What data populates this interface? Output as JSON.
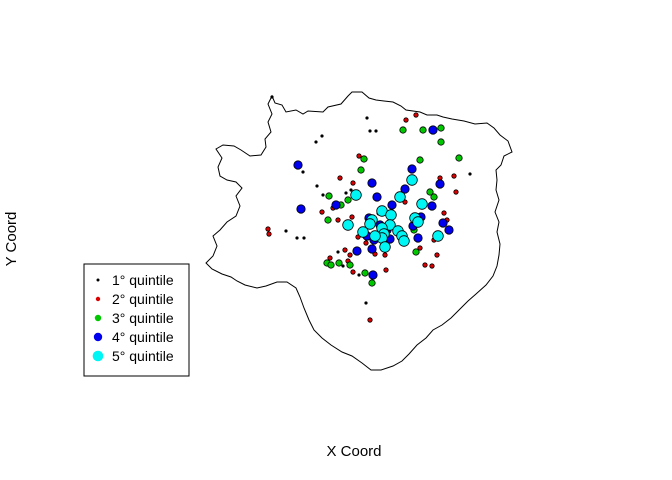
{
  "chart_data": {
    "type": "scatter",
    "xlabel": "X Coord",
    "ylabel": "Y Coord",
    "grid": false,
    "legend_placement": "bottom-left",
    "boundary": [
      [
        272,
        96
      ],
      [
        275,
        103
      ],
      [
        282,
        105
      ],
      [
        286,
        112
      ],
      [
        296,
        110
      ],
      [
        303,
        114
      ],
      [
        308,
        111
      ],
      [
        323,
        112
      ],
      [
        328,
        107
      ],
      [
        341,
        104
      ],
      [
        348,
        96
      ],
      [
        352,
        92
      ],
      [
        362,
        92
      ],
      [
        369,
        98
      ],
      [
        376,
        100
      ],
      [
        384,
        101
      ],
      [
        393,
        102
      ],
      [
        401,
        106
      ],
      [
        406,
        110
      ],
      [
        420,
        112
      ],
      [
        427,
        115
      ],
      [
        437,
        115
      ],
      [
        443,
        117
      ],
      [
        452,
        119
      ],
      [
        464,
        121
      ],
      [
        475,
        124
      ],
      [
        487,
        123
      ],
      [
        494,
        128
      ],
      [
        500,
        135
      ],
      [
        508,
        141
      ],
      [
        512,
        152
      ],
      [
        504,
        156
      ],
      [
        501,
        165
      ],
      [
        496,
        170
      ],
      [
        497,
        180
      ],
      [
        496,
        190
      ],
      [
        499,
        200
      ],
      [
        495,
        212
      ],
      [
        499,
        222
      ],
      [
        497,
        232
      ],
      [
        500,
        244
      ],
      [
        499,
        255
      ],
      [
        497,
        266
      ],
      [
        493,
        276
      ],
      [
        486,
        285
      ],
      [
        476,
        294
      ],
      [
        468,
        301
      ],
      [
        459,
        310
      ],
      [
        451,
        318
      ],
      [
        442,
        325
      ],
      [
        433,
        330
      ],
      [
        426,
        338
      ],
      [
        417,
        345
      ],
      [
        409,
        354
      ],
      [
        402,
        361
      ],
      [
        393,
        366
      ],
      [
        381,
        370
      ],
      [
        371,
        370
      ],
      [
        362,
        363
      ],
      [
        352,
        356
      ],
      [
        342,
        352
      ],
      [
        331,
        345
      ],
      [
        322,
        338
      ],
      [
        314,
        330
      ],
      [
        309,
        320
      ],
      [
        304,
        308
      ],
      [
        300,
        297
      ],
      [
        296,
        288
      ],
      [
        287,
        282
      ],
      [
        277,
        282
      ],
      [
        266,
        286
      ],
      [
        257,
        288
      ],
      [
        245,
        285
      ],
      [
        237,
        281
      ],
      [
        231,
        277
      ],
      [
        222,
        274
      ],
      [
        212,
        269
      ],
      [
        206,
        263
      ],
      [
        213,
        256
      ],
      [
        217,
        246
      ],
      [
        213,
        236
      ],
      [
        220,
        230
      ],
      [
        227,
        222
      ],
      [
        236,
        216
      ],
      [
        240,
        206
      ],
      [
        236,
        196
      ],
      [
        242,
        188
      ],
      [
        236,
        182
      ],
      [
        227,
        180
      ],
      [
        220,
        176
      ],
      [
        218,
        167
      ],
      [
        222,
        158
      ],
      [
        216,
        149
      ],
      [
        223,
        145
      ],
      [
        234,
        146
      ],
      [
        241,
        150
      ],
      [
        250,
        156
      ],
      [
        261,
        155
      ],
      [
        266,
        147
      ],
      [
        265,
        139
      ],
      [
        271,
        132
      ],
      [
        268,
        122
      ],
      [
        272,
        114
      ],
      [
        268,
        104
      ],
      [
        272,
        96
      ]
    ],
    "series": [
      {
        "name": "1° quintile",
        "color": "#000000",
        "size": 1.5,
        "points": [
          [
            272,
            97
          ],
          [
            367,
            118
          ],
          [
            322,
            136
          ],
          [
            370,
            131
          ],
          [
            376,
            131
          ],
          [
            316,
            142
          ],
          [
            303,
            172
          ],
          [
            317,
            186
          ],
          [
            323,
            195
          ],
          [
            351,
            190
          ],
          [
            346,
            193
          ],
          [
            286,
            231
          ],
          [
            297,
            238
          ],
          [
            304,
            238
          ],
          [
            470,
            174
          ],
          [
            343,
            266
          ],
          [
            338,
            252
          ],
          [
            359,
            275
          ],
          [
            366,
            303
          ]
        ]
      },
      {
        "name": "2° quintile",
        "color": "#DD0000",
        "size": 2.2,
        "points": [
          [
            406,
            120
          ],
          [
            416,
            115
          ],
          [
            359,
            156
          ],
          [
            340,
            178
          ],
          [
            353,
            183
          ],
          [
            333,
            208
          ],
          [
            338,
            220
          ],
          [
            352,
            217
          ],
          [
            358,
            237
          ],
          [
            345,
            250
          ],
          [
            366,
            243
          ],
          [
            268,
            229
          ],
          [
            269,
            234
          ],
          [
            322,
            212
          ],
          [
            350,
            255
          ],
          [
            348,
            261
          ],
          [
            353,
            272
          ],
          [
            330,
            258
          ],
          [
            375,
            254
          ],
          [
            385,
            255
          ],
          [
            386,
            270
          ],
          [
            420,
            248
          ],
          [
            425,
            265
          ],
          [
            432,
            266
          ],
          [
            437,
            255
          ],
          [
            434,
            240
          ],
          [
            447,
            220
          ],
          [
            444,
            213
          ],
          [
            456,
            192
          ],
          [
            454,
            176
          ],
          [
            440,
            178
          ],
          [
            402,
            196
          ],
          [
            405,
            202
          ],
          [
            379,
            213
          ],
          [
            370,
            320
          ]
        ]
      },
      {
        "name": "3° quintile",
        "color": "#00C800",
        "size": 3.2,
        "points": [
          [
            403,
            130
          ],
          [
            423,
            130
          ],
          [
            441,
            128
          ],
          [
            459,
            158
          ],
          [
            420,
            160
          ],
          [
            441,
            142
          ],
          [
            364,
            159
          ],
          [
            361,
            170
          ],
          [
            329,
            196
          ],
          [
            341,
            205
          ],
          [
            348,
            200
          ],
          [
            328,
            220
          ],
          [
            327,
            263
          ],
          [
            331,
            265
          ],
          [
            339,
            263
          ],
          [
            350,
            265
          ],
          [
            365,
            273
          ],
          [
            372,
            283
          ],
          [
            414,
            230
          ],
          [
            416,
            252
          ],
          [
            430,
            192
          ],
          [
            434,
            197
          ]
        ]
      },
      {
        "name": "4° quintile",
        "color": "#0000EE",
        "size": 4.2,
        "points": [
          [
            433,
            130
          ],
          [
            298,
            165
          ],
          [
            412,
            169
          ],
          [
            440,
            184
          ],
          [
            372,
            183
          ],
          [
            405,
            189
          ],
          [
            336,
            205
          ],
          [
            377,
            197
          ],
          [
            301,
            209
          ],
          [
            369,
            218
          ],
          [
            392,
            205
          ],
          [
            380,
            225
          ],
          [
            387,
            230
          ],
          [
            390,
            239
          ],
          [
            372,
            249
          ],
          [
            367,
            236
          ],
          [
            374,
            240
          ],
          [
            357,
            251
          ],
          [
            373,
            275
          ],
          [
            421,
            217
          ],
          [
            443,
            223
          ],
          [
            449,
            230
          ],
          [
            432,
            206
          ],
          [
            413,
            226
          ],
          [
            418,
            238
          ]
        ]
      },
      {
        "name": "5° quintile",
        "color": "#00F5F5",
        "size": 5.3,
        "points": [
          [
            356,
            195
          ],
          [
            400,
            197
          ],
          [
            422,
            204
          ],
          [
            412,
            180
          ],
          [
            382,
            211
          ],
          [
            391,
            215
          ],
          [
            372,
            220
          ],
          [
            390,
            225
          ],
          [
            398,
            231
          ],
          [
            382,
            228
          ],
          [
            384,
            234
          ],
          [
            382,
            238
          ],
          [
            375,
            236
          ],
          [
            370,
            224
          ],
          [
            348,
            225
          ],
          [
            363,
            232
          ],
          [
            402,
            236
          ],
          [
            404,
            241
          ],
          [
            415,
            218
          ],
          [
            418,
            222
          ],
          [
            438,
            236
          ],
          [
            385,
            247
          ]
        ]
      }
    ]
  }
}
